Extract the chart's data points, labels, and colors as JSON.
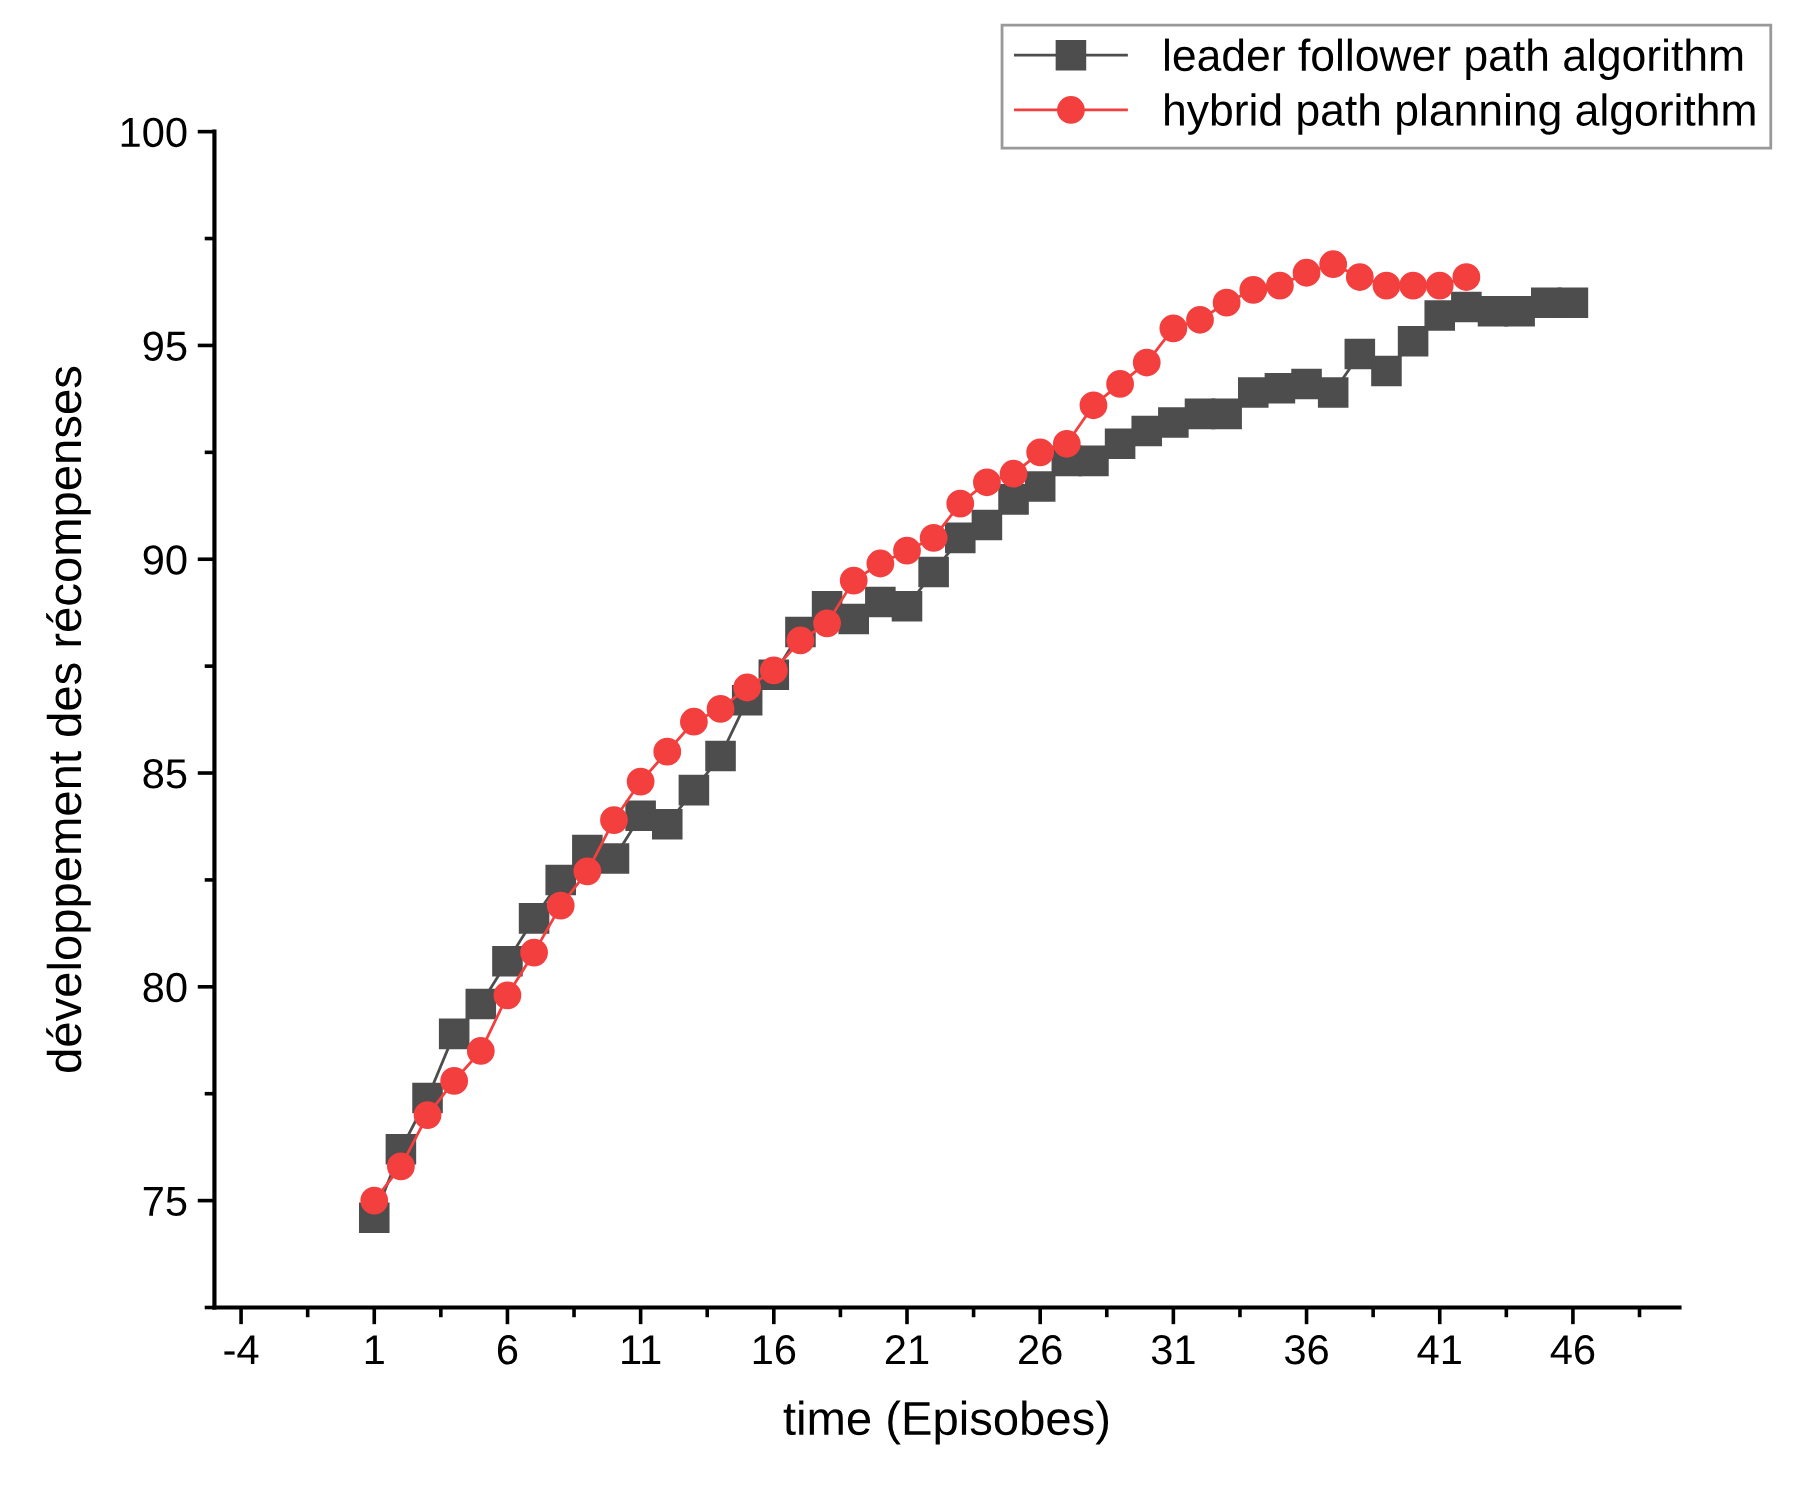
{
  "chart_data": {
    "type": "line",
    "xlabel": "time (Episobes)",
    "ylabel": "développement des récompenses",
    "xlim": [
      -5,
      50
    ],
    "xticks": [
      -4,
      1,
      6,
      11,
      16,
      21,
      26,
      31,
      36,
      41,
      46
    ],
    "ylim": [
      72.5,
      100
    ],
    "yticks": [
      75,
      80,
      85,
      90,
      95,
      100
    ],
    "grid": false,
    "legend": "top right",
    "series": [
      {
        "name": "leader follower path algorithm",
        "color": "#4d4d4d",
        "marker": "square",
        "x": [
          1,
          2,
          3,
          4,
          5,
          6,
          7,
          8,
          9,
          10,
          11,
          12,
          13,
          14,
          15,
          16,
          17,
          18,
          19,
          20,
          21,
          22,
          23,
          24,
          25,
          26,
          27,
          28,
          29,
          30,
          31,
          32,
          33,
          34,
          35,
          36,
          37,
          38,
          39,
          40,
          41,
          42,
          43,
          44,
          45,
          46
        ],
        "values": [
          74.6,
          76.2,
          77.4,
          78.9,
          79.6,
          80.6,
          81.6,
          82.5,
          83.2,
          83.0,
          84.0,
          83.8,
          84.6,
          85.4,
          86.7,
          87.3,
          88.3,
          88.9,
          88.6,
          89.0,
          88.9,
          89.7,
          90.5,
          90.8,
          91.4,
          91.7,
          92.3,
          92.3,
          92.7,
          93.0,
          93.2,
          93.4,
          93.4,
          93.9,
          94.0,
          94.1,
          93.9,
          94.8,
          94.4,
          95.1,
          95.7,
          95.9,
          95.8,
          95.8,
          96.0,
          96.0
        ]
      },
      {
        "name": "hybrid path planning algorithm",
        "color": "#f43f3f",
        "marker": "circle",
        "x": [
          1,
          2,
          3,
          4,
          5,
          6,
          7,
          8,
          9,
          10,
          11,
          12,
          13,
          14,
          15,
          16,
          17,
          18,
          19,
          20,
          21,
          22,
          23,
          24,
          25,
          26,
          27,
          28,
          29,
          30,
          31,
          32,
          33,
          34,
          35,
          36,
          37,
          38,
          39,
          40,
          41,
          42
        ],
        "values": [
          75.0,
          75.8,
          77.0,
          77.8,
          78.5,
          79.8,
          80.8,
          81.9,
          82.7,
          83.9,
          84.8,
          85.5,
          86.2,
          86.5,
          87.0,
          87.4,
          88.1,
          88.5,
          89.5,
          89.9,
          90.2,
          90.5,
          91.3,
          91.8,
          92.0,
          92.5,
          92.7,
          93.6,
          94.1,
          94.6,
          95.4,
          95.6,
          96.0,
          96.3,
          96.4,
          96.7,
          96.9,
          96.6,
          96.4,
          96.4,
          96.4,
          96.6
        ]
      }
    ]
  }
}
